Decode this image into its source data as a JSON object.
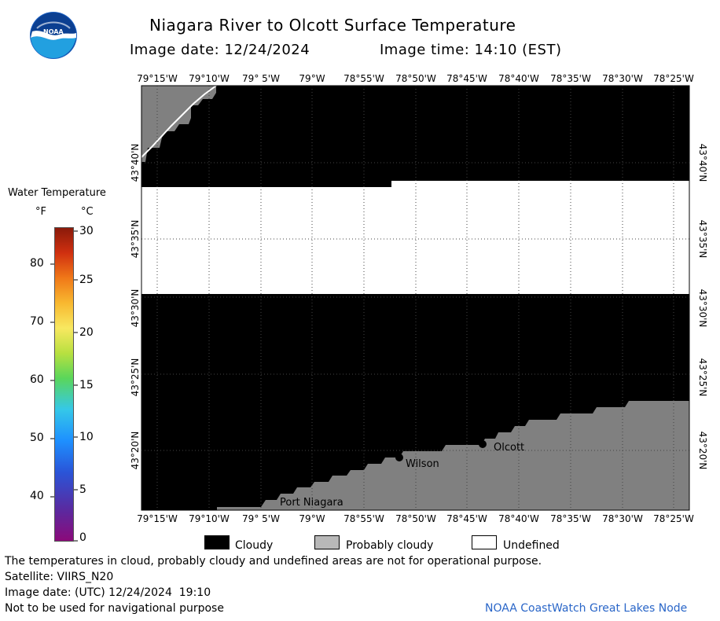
{
  "header": {
    "title": "Niagara River to Olcott Surface Temperature",
    "image_date": "Image date: 12/24/2024",
    "image_time": "Image time: 14:10 (EST)"
  },
  "logo": {
    "text": "NOAA"
  },
  "colorbar": {
    "title": "Water Temperature",
    "unit_f": "°F",
    "unit_c": "°C",
    "f_ticks": [
      "80",
      "70",
      "60",
      "50",
      "40"
    ],
    "c_ticks": [
      "30",
      "25",
      "20",
      "15",
      "10",
      "5",
      "0"
    ]
  },
  "legend": {
    "cloudy": "Cloudy",
    "probably_cloudy": "Probably cloudy",
    "undefined": "Undefined",
    "colors": {
      "cloudy": "#000000",
      "probably_cloudy": "#808080",
      "undefined": "#ffffff"
    }
  },
  "footer": {
    "note": "The temperatures in cloud, probably cloudy and undefined areas are not for operational purpose.",
    "satellite": "Satellite: VIIRS_N20",
    "utc_date": "Image date: (UTC) 12/24/2024  19:10",
    "nav": "Not to be used for navigational purpose",
    "credit": "NOAA CoastWatch Great Lakes Node"
  },
  "chart_data": {
    "type": "heatmap",
    "x_ticks": [
      "79°15'W",
      "79°10'W",
      "79° 5'W",
      "79°W",
      "78°55'W",
      "78°50'W",
      "78°45'W",
      "78°40'W",
      "78°35'W",
      "78°30'W",
      "78°25'W"
    ],
    "y_ticks": [
      "43°40'N",
      "43°35'N",
      "43°30'N",
      "43°25'N",
      "43°20'N"
    ],
    "places": [
      {
        "name": "Wilson"
      },
      {
        "name": "Olcott"
      },
      {
        "name": "Port Niagara"
      }
    ],
    "categories": [
      "Cloudy",
      "Probably cloudy",
      "Undefined"
    ],
    "grid": true
  }
}
